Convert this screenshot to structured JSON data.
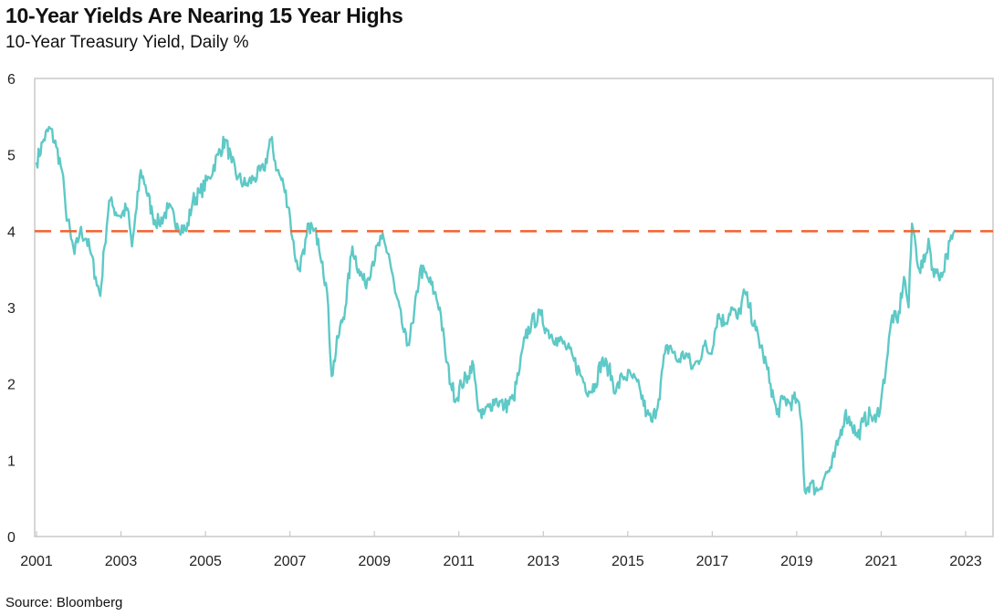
{
  "title": "10-Year Yields Are Nearing 15 Year Highs",
  "subtitle": "10-Year Treasury Yield, Daily %",
  "source": "Source: Bloomberg",
  "chart_data": {
    "type": "line",
    "title": "10-Year Yields Are Nearing 15 Year Highs",
    "subtitle": "10-Year Treasury Yield, Daily %",
    "xlabel": "",
    "ylabel": "",
    "xlim": [
      2001,
      2023.6
    ],
    "ylim": [
      0,
      6
    ],
    "x_ticks": [
      "2001",
      "2003",
      "2005",
      "2007",
      "2009",
      "2011",
      "2013",
      "2015",
      "2017",
      "2019",
      "2021",
      "2023"
    ],
    "y_ticks": [
      "0",
      "1",
      "2",
      "3",
      "4",
      "5",
      "6"
    ],
    "grid": false,
    "legend": "none",
    "colors": {
      "series": "#5ec9c6",
      "reference": "#f2622e"
    },
    "reference_line": {
      "y": 4,
      "style": "dashed"
    },
    "series": [
      {
        "x": [
          2001.0,
          2001.17,
          2001.32,
          2001.47,
          2001.6,
          2001.69,
          2001.82,
          2001.9,
          2002.03,
          2002.18,
          2002.29,
          2002.4,
          2002.51,
          2002.61,
          2002.72,
          2002.83,
          2002.98,
          2003.15,
          2003.26,
          2003.37,
          2003.47,
          2003.58,
          2003.75,
          2003.9,
          2004.12,
          2004.33,
          2004.55,
          2004.7,
          2004.87,
          2005.09,
          2005.3,
          2005.47,
          2005.62,
          2005.77,
          2005.95,
          2006.16,
          2006.38,
          2006.55,
          2006.7,
          2006.85,
          2006.98,
          2007.06,
          2007.19,
          2007.34,
          2007.45,
          2007.56,
          2007.67,
          2007.77,
          2007.88,
          2007.99,
          2008.14,
          2008.31,
          2008.48,
          2008.63,
          2008.78,
          2008.96,
          2009.17,
          2009.34,
          2009.49,
          2009.65,
          2009.77,
          2009.92,
          2010.08,
          2010.25,
          2010.42,
          2010.55,
          2010.68,
          2010.81,
          2010.94,
          2011.06,
          2011.22,
          2011.32,
          2011.43,
          2011.54,
          2011.71,
          2011.86,
          2012.08,
          2012.29,
          2012.44,
          2012.57,
          2012.72,
          2012.94,
          2013.09,
          2013.3,
          2013.52,
          2013.73,
          2013.9,
          2014.08,
          2014.23,
          2014.38,
          2014.55,
          2014.72,
          2014.87,
          2015.09,
          2015.3,
          2015.45,
          2015.58,
          2015.73,
          2015.88,
          2016.01,
          2016.16,
          2016.38,
          2016.53,
          2016.66,
          2016.81,
          2016.96,
          2017.13,
          2017.3,
          2017.45,
          2017.6,
          2017.77,
          2017.88,
          2018.03,
          2018.2,
          2018.38,
          2018.53,
          2018.68,
          2018.85,
          2019.0,
          2019.11,
          2019.19,
          2019.32,
          2019.49,
          2019.67,
          2019.82,
          2019.97,
          2020.14,
          2020.29,
          2020.44,
          2020.57,
          2020.74,
          2020.87,
          2021.0,
          2021.13,
          2021.26,
          2021.39,
          2021.54,
          2021.65,
          2021.73,
          2021.82,
          2021.9,
          2022.03,
          2022.12,
          2022.25,
          2022.33,
          2022.44,
          2022.55,
          2022.68,
          2022.76
        ],
        "y": [
          4.9,
          5.2,
          5.35,
          5.1,
          4.8,
          4.3,
          3.9,
          3.7,
          4.0,
          3.9,
          3.7,
          3.4,
          3.15,
          3.8,
          4.4,
          4.3,
          4.2,
          4.3,
          3.8,
          4.3,
          4.8,
          4.6,
          4.2,
          4.1,
          4.3,
          4.1,
          4.0,
          4.4,
          4.5,
          4.7,
          5.0,
          5.2,
          4.9,
          4.7,
          4.6,
          4.7,
          4.8,
          5.2,
          4.8,
          4.6,
          4.3,
          3.9,
          3.5,
          3.7,
          4.1,
          4.0,
          3.9,
          3.6,
          3.2,
          2.1,
          2.6,
          3.0,
          3.8,
          3.5,
          3.3,
          3.6,
          3.9,
          3.7,
          3.2,
          2.8,
          2.5,
          2.8,
          3.5,
          3.4,
          3.2,
          3.0,
          2.4,
          2.0,
          1.8,
          2.0,
          2.1,
          2.3,
          1.8,
          1.55,
          1.7,
          1.8,
          1.7,
          1.8,
          2.2,
          2.6,
          2.8,
          2.9,
          2.7,
          2.6,
          2.5,
          2.3,
          2.1,
          1.9,
          2.0,
          2.3,
          2.2,
          1.9,
          2.1,
          2.1,
          1.9,
          1.6,
          1.5,
          1.8,
          2.4,
          2.5,
          2.3,
          2.4,
          2.2,
          2.3,
          2.5,
          2.4,
          2.9,
          2.8,
          3.0,
          2.85,
          3.2,
          3.0,
          2.7,
          2.4,
          2.0,
          1.6,
          1.8,
          1.75,
          1.8,
          1.5,
          0.6,
          0.7,
          0.6,
          0.8,
          0.9,
          1.2,
          1.6,
          1.5,
          1.3,
          1.5,
          1.6,
          1.5,
          1.8,
          2.3,
          2.9,
          2.8,
          3.4,
          3.0,
          4.1,
          3.8,
          3.5,
          3.6,
          3.9,
          3.4,
          3.5,
          3.4,
          3.7,
          3.9,
          4.0
        ]
      }
    ]
  }
}
